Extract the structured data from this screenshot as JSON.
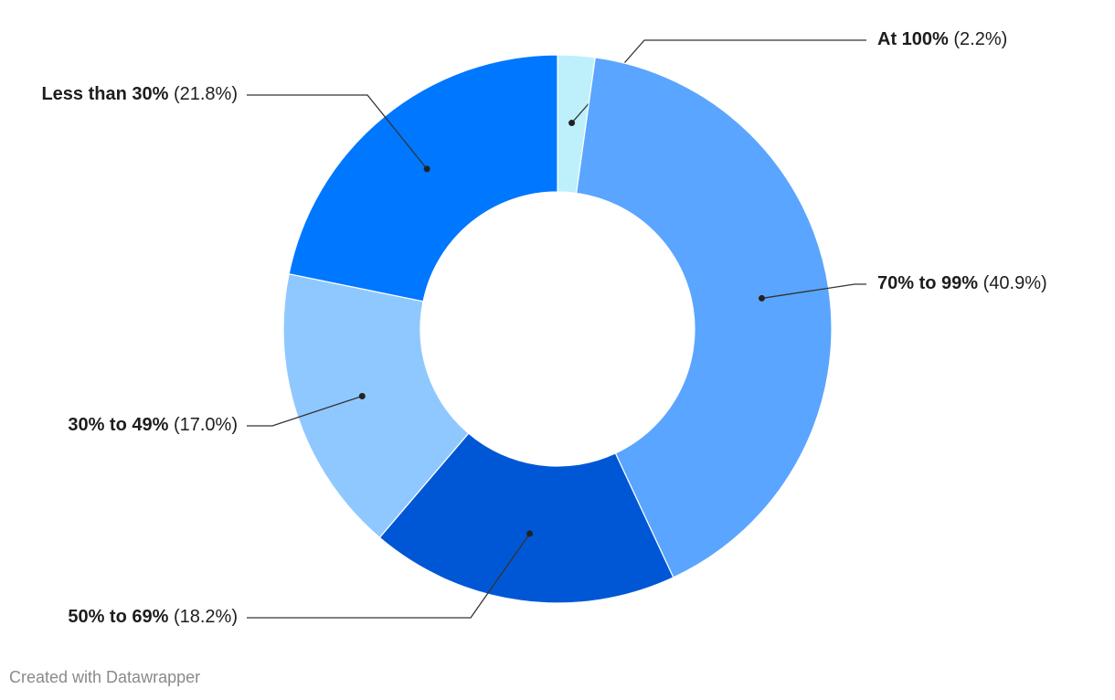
{
  "chart_data": {
    "type": "donut",
    "categories": [
      "At 100%",
      "70% to 99%",
      "50% to 69%",
      "30% to 49%",
      "Less than 30%"
    ],
    "values": [
      2.2,
      40.9,
      18.2,
      17.0,
      21.8
    ],
    "value_labels": [
      "(2.2%)",
      "(40.9%)",
      "(18.2%)",
      "(17.0%)",
      "(21.8%)"
    ],
    "colors": [
      "#bdf0fb",
      "#5aa5ff",
      "#0057d6",
      "#8fc8ff",
      "#0077ff"
    ],
    "credit": "Created with Datawrapper"
  }
}
